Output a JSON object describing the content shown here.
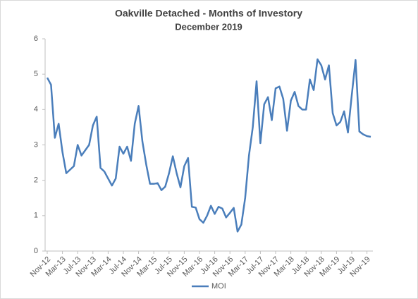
{
  "chart_data": {
    "type": "line",
    "title": "Oakville Detached - Months of Investory",
    "subtitle": "December 2019",
    "categories": [
      "Nov-12",
      null,
      null,
      null,
      "Mar-13",
      null,
      null,
      null,
      "Jul-13",
      null,
      null,
      null,
      "Nov-13",
      null,
      null,
      null,
      "Mar-14",
      null,
      null,
      null,
      "Jul-14",
      null,
      null,
      null,
      "Nov-14",
      null,
      null,
      null,
      "Mar-15",
      null,
      null,
      null,
      "Jul-15",
      null,
      null,
      null,
      "Nov-15",
      null,
      null,
      null,
      "Mar-16",
      null,
      null,
      null,
      "Jul-16",
      null,
      null,
      null,
      "Nov-16",
      null,
      null,
      null,
      "Mar-17",
      null,
      null,
      null,
      "Jul-17",
      null,
      null,
      null,
      "Nov-17",
      null,
      null,
      null,
      "Mar-18",
      null,
      null,
      null,
      "Jul-18",
      null,
      null,
      null,
      "Nov-18",
      null,
      null,
      null,
      "Mar-19",
      null,
      null,
      null,
      "Jul-19",
      null,
      null,
      null,
      "Nov-19",
      null
    ],
    "series": [
      {
        "name": "MOI",
        "color": "#4a7ebb",
        "values": [
          4.9,
          4.7,
          3.2,
          3.6,
          2.8,
          2.2,
          2.3,
          2.4,
          3.0,
          2.7,
          2.85,
          3.0,
          3.55,
          3.8,
          2.35,
          2.25,
          2.05,
          1.85,
          2.05,
          2.95,
          2.75,
          2.95,
          2.55,
          3.6,
          4.1,
          3.1,
          2.45,
          1.9,
          1.9,
          1.92,
          1.72,
          1.82,
          2.2,
          2.68,
          2.2,
          1.8,
          2.4,
          2.63,
          1.25,
          1.23,
          0.9,
          0.8,
          1.0,
          1.28,
          1.05,
          1.25,
          1.2,
          0.95,
          1.08,
          1.22,
          0.55,
          0.75,
          1.5,
          2.7,
          3.5,
          4.8,
          3.05,
          4.15,
          4.35,
          3.7,
          4.6,
          4.65,
          4.3,
          3.4,
          4.25,
          4.5,
          4.1,
          4.0,
          4.0,
          4.85,
          4.55,
          5.42,
          5.25,
          4.85,
          5.25,
          3.9,
          3.55,
          3.65,
          3.95,
          3.35,
          4.4,
          5.4,
          3.38,
          3.3,
          3.25,
          3.23
        ]
      }
    ],
    "ylim": [
      0,
      6
    ],
    "yticks": [
      0,
      1,
      2,
      3,
      4,
      5,
      6
    ],
    "grid": false,
    "legend": "bottom"
  }
}
